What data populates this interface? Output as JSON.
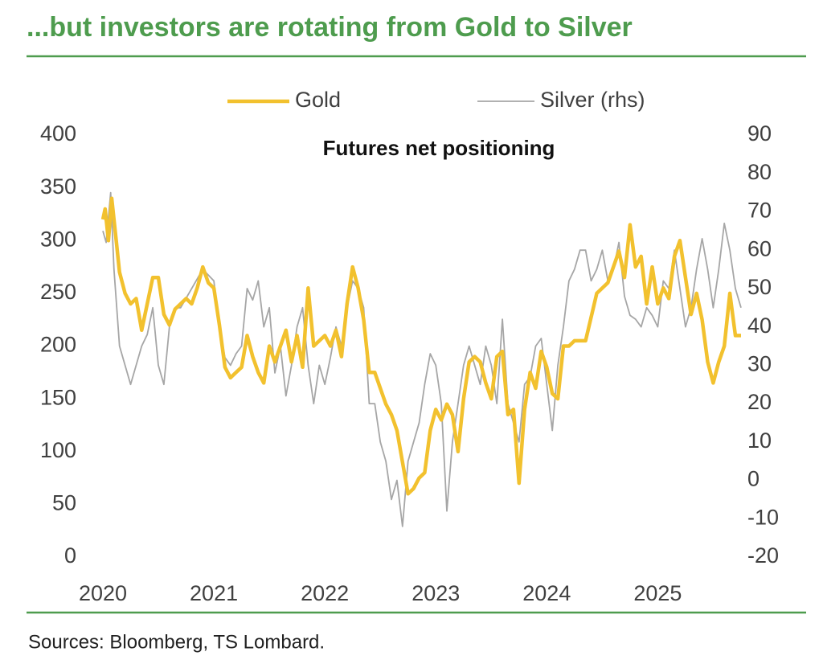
{
  "chart_data": {
    "type": "line",
    "title": "...but investors are rotating from Gold to Silver",
    "subtitle": "Futures net positioning",
    "source": "Sources: Bloomberg, TS Lombard.",
    "xlim": [
      2020,
      2025.83
    ],
    "xticks": [
      2020,
      2021,
      2022,
      2023,
      2024,
      2025
    ],
    "ylim": [
      0,
      400
    ],
    "yticks": [
      0,
      50,
      100,
      150,
      200,
      250,
      300,
      350,
      400
    ],
    "y2lim": [
      -20,
      90
    ],
    "y2ticks": [
      -20,
      -10,
      0,
      10,
      20,
      30,
      40,
      50,
      60,
      70,
      80,
      90
    ],
    "series": [
      {
        "name": "Gold",
        "color": "#f2c12e",
        "x": [
          2020.0,
          2020.02,
          2020.05,
          2020.08,
          2020.12,
          2020.15,
          2020.2,
          2020.25,
          2020.3,
          2020.35,
          2020.4,
          2020.45,
          2020.5,
          2020.55,
          2020.6,
          2020.65,
          2020.7,
          2020.75,
          2020.8,
          2020.85,
          2020.9,
          2020.95,
          2021.0,
          2021.05,
          2021.1,
          2021.15,
          2021.2,
          2021.25,
          2021.3,
          2021.35,
          2021.4,
          2021.45,
          2021.5,
          2021.55,
          2021.6,
          2021.65,
          2021.7,
          2021.75,
          2021.8,
          2021.85,
          2021.9,
          2021.95,
          2022.0,
          2022.05,
          2022.1,
          2022.15,
          2022.2,
          2022.25,
          2022.3,
          2022.35,
          2022.4,
          2022.45,
          2022.5,
          2022.55,
          2022.6,
          2022.65,
          2022.7,
          2022.75,
          2022.8,
          2022.85,
          2022.9,
          2022.95,
          2023.0,
          2023.05,
          2023.1,
          2023.15,
          2023.2,
          2023.25,
          2023.3,
          2023.35,
          2023.4,
          2023.45,
          2023.5,
          2023.55,
          2023.6,
          2023.65,
          2023.7,
          2023.75,
          2023.8,
          2023.85,
          2023.9,
          2023.95,
          2024.0,
          2024.05,
          2024.1,
          2024.15,
          2024.2,
          2024.25,
          2024.35,
          2024.45,
          2024.55,
          2024.65,
          2024.7,
          2024.75,
          2024.8,
          2024.85,
          2024.9,
          2024.95,
          2025.0,
          2025.05,
          2025.1,
          2025.15,
          2025.2,
          2025.25,
          2025.3,
          2025.35,
          2025.4,
          2025.45,
          2025.5,
          2025.55,
          2025.6,
          2025.65,
          2025.7,
          2025.75
        ],
        "values": [
          320,
          330,
          300,
          340,
          300,
          270,
          250,
          240,
          245,
          215,
          240,
          265,
          265,
          230,
          220,
          235,
          240,
          245,
          240,
          255,
          275,
          260,
          255,
          220,
          180,
          170,
          175,
          180,
          210,
          190,
          175,
          165,
          200,
          185,
          200,
          215,
          185,
          210,
          180,
          255,
          200,
          205,
          210,
          200,
          215,
          190,
          240,
          275,
          255,
          225,
          175,
          175,
          160,
          145,
          135,
          120,
          90,
          60,
          65,
          75,
          80,
          120,
          140,
          130,
          145,
          135,
          100,
          150,
          185,
          190,
          185,
          165,
          150,
          190,
          195,
          135,
          140,
          70,
          140,
          175,
          160,
          195,
          180,
          155,
          150,
          200,
          200,
          205,
          205,
          250,
          260,
          290,
          265,
          315,
          275,
          285,
          240,
          275,
          240,
          255,
          245,
          285,
          300,
          265,
          230,
          250,
          225,
          185,
          165,
          185,
          200,
          250,
          210,
          210
        ]
      },
      {
        "name": "Silver (rhs)",
        "color": "#a6a6a6",
        "axis": "y2",
        "x": [
          2020.0,
          2020.03,
          2020.07,
          2020.1,
          2020.15,
          2020.2,
          2020.25,
          2020.3,
          2020.35,
          2020.4,
          2020.45,
          2020.5,
          2020.55,
          2020.6,
          2020.65,
          2020.7,
          2020.8,
          2020.9,
          2021.0,
          2021.05,
          2021.1,
          2021.15,
          2021.2,
          2021.25,
          2021.3,
          2021.35,
          2021.4,
          2021.45,
          2021.5,
          2021.55,
          2021.6,
          2021.65,
          2021.7,
          2021.75,
          2021.8,
          2021.85,
          2021.9,
          2021.95,
          2022.0,
          2022.05,
          2022.1,
          2022.15,
          2022.2,
          2022.25,
          2022.3,
          2022.35,
          2022.4,
          2022.45,
          2022.5,
          2022.55,
          2022.6,
          2022.65,
          2022.7,
          2022.75,
          2022.8,
          2022.85,
          2022.9,
          2022.95,
          2023.0,
          2023.05,
          2023.1,
          2023.15,
          2023.2,
          2023.25,
          2023.3,
          2023.35,
          2023.4,
          2023.45,
          2023.5,
          2023.55,
          2023.6,
          2023.65,
          2023.7,
          2023.75,
          2023.8,
          2023.85,
          2023.9,
          2023.95,
          2024.0,
          2024.05,
          2024.1,
          2024.15,
          2024.2,
          2024.25,
          2024.3,
          2024.35,
          2024.4,
          2024.45,
          2024.5,
          2024.55,
          2024.6,
          2024.65,
          2024.7,
          2024.75,
          2024.8,
          2024.85,
          2024.9,
          2024.95,
          2025.0,
          2025.05,
          2025.1,
          2025.15,
          2025.2,
          2025.25,
          2025.3,
          2025.35,
          2025.4,
          2025.45,
          2025.5,
          2025.55,
          2025.6,
          2025.65,
          2025.7,
          2025.75
        ],
        "values": [
          65,
          62,
          75,
          55,
          35,
          30,
          25,
          30,
          35,
          38,
          45,
          30,
          25,
          40,
          45,
          45,
          50,
          55,
          52,
          40,
          32,
          30,
          33,
          35,
          50,
          47,
          52,
          40,
          45,
          28,
          35,
          22,
          30,
          40,
          45,
          30,
          20,
          30,
          25,
          32,
          40,
          35,
          45,
          52,
          50,
          45,
          20,
          20,
          10,
          5,
          -5,
          0,
          -12,
          5,
          10,
          15,
          25,
          33,
          30,
          20,
          -8,
          10,
          20,
          30,
          35,
          30,
          25,
          35,
          30,
          20,
          42,
          20,
          15,
          10,
          25,
          27,
          35,
          37,
          25,
          13,
          30,
          40,
          52,
          55,
          60,
          60,
          52,
          55,
          60,
          52,
          55,
          62,
          48,
          43,
          42,
          40,
          45,
          43,
          40,
          52,
          50,
          60,
          50,
          40,
          45,
          55,
          63,
          55,
          45,
          55,
          67,
          60,
          50,
          45
        ]
      }
    ]
  }
}
